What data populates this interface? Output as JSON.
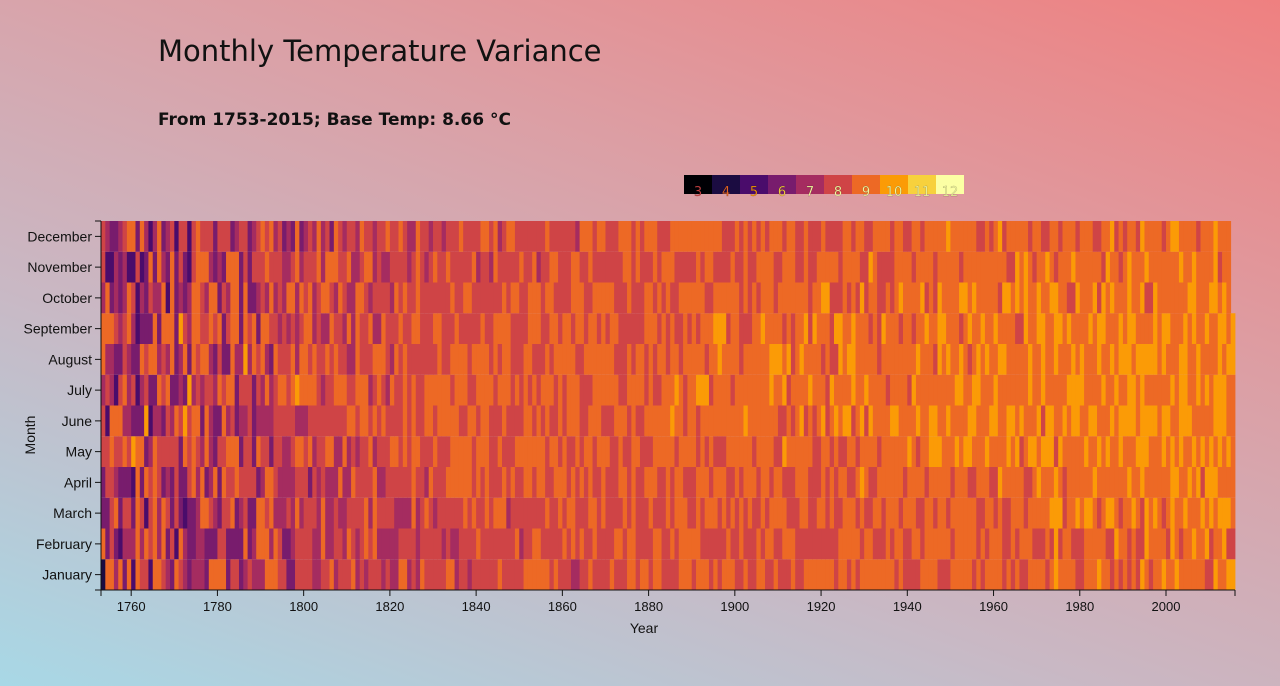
{
  "header": {
    "title": "Monthly Temperature Variance",
    "subtitle": "From 1753-2015; Base Temp: 8.66 °C"
  },
  "colors": {
    "scale": [
      "#000004",
      "#1b0c41",
      "#4a0c6b",
      "#781c6d",
      "#a52c60",
      "#cf4446",
      "#ed6925",
      "#fb9b06",
      "#f7d13d",
      "#fcffa4"
    ]
  },
  "chart_data": {
    "type": "heatmap",
    "xlabel": "Year",
    "ylabel": "Month",
    "x_range": [
      1753,
      2015
    ],
    "x_ticks": [
      1760,
      1780,
      1800,
      1820,
      1840,
      1860,
      1880,
      1900,
      1920,
      1940,
      1960,
      1980,
      2000
    ],
    "months": [
      "January",
      "February",
      "March",
      "April",
      "May",
      "June",
      "July",
      "August",
      "September",
      "October",
      "November",
      "December"
    ],
    "base_temp": 8.66,
    "legend": {
      "labels": [
        "3",
        "4",
        "5",
        "6",
        "7",
        "8",
        "9",
        "10",
        "11",
        "12"
      ],
      "placement": "top-right"
    },
    "series_summary": {
      "early_period_colder": true,
      "recent_period_warmer": true
    }
  }
}
